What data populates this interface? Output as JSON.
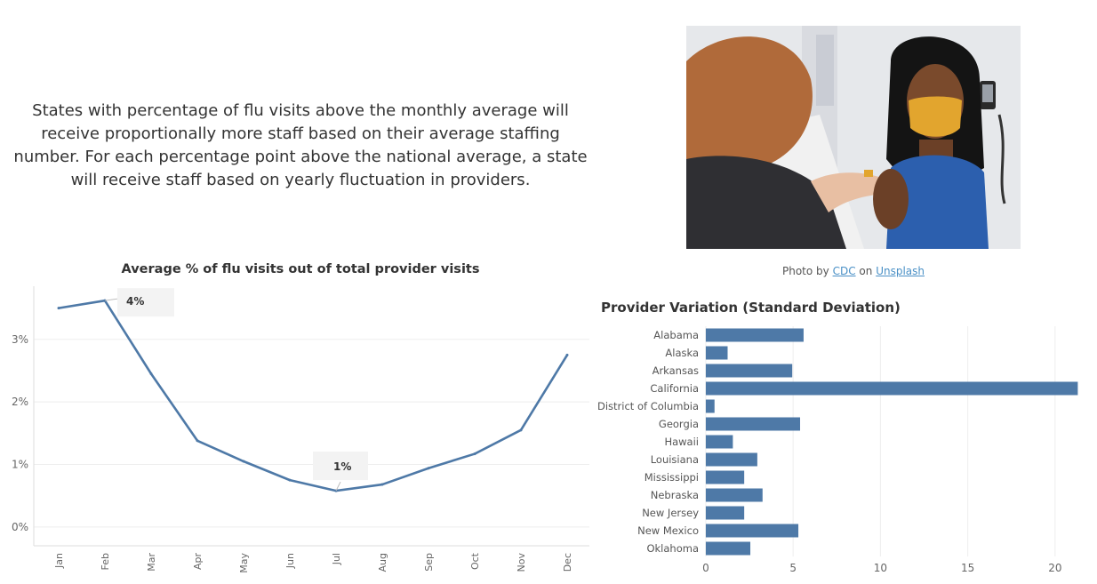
{
  "intro_text": "States with percentage of flu visits above the monthly average will receive proportionally more staff based on their average staffing number. For each percentage point above the national average, a state will receive staff based on yearly fluctuation in providers.",
  "photo_credit": {
    "prefix": "Photo by",
    "author": "CDC",
    "middle": "on",
    "site": "Unsplash"
  },
  "colors": {
    "series": "#4e79a7",
    "grid": "#eeeeee",
    "axis_text": "#666666",
    "label_bg": "#f3f3f3"
  },
  "chart_data": [
    {
      "type": "line",
      "title": "Average % of flu visits out of total provider visits",
      "x": [
        "Jan",
        "Feb",
        "Mar",
        "Apr",
        "May",
        "Jun",
        "Jul",
        "Aug",
        "Sep",
        "Oct",
        "Nov",
        "Dec"
      ],
      "values": [
        3.5,
        3.62,
        2.45,
        1.38,
        1.05,
        0.75,
        0.58,
        0.68,
        0.94,
        1.17,
        1.55,
        2.75
      ],
      "y_ticks": [
        0,
        1,
        2,
        3
      ],
      "y_tick_labels": [
        "0%",
        "1%",
        "2%",
        "3%"
      ],
      "ylim": [
        -0.3,
        3.85
      ],
      "grid": true,
      "annotations": [
        {
          "index": 1,
          "text": "4%"
        },
        {
          "index": 6,
          "text": "1%"
        }
      ]
    },
    {
      "type": "bar",
      "orientation": "horizontal",
      "title": "Provider Variation (Standard Deviation)",
      "categories": [
        "Alabama",
        "Alaska",
        "Arkansas",
        "California",
        "District of Columbia",
        "Georgia",
        "Hawaii",
        "Louisiana",
        "Mississippi",
        "Nebraska",
        "New Jersey",
        "New Mexico",
        "Oklahoma"
      ],
      "values": [
        5.6,
        1.25,
        4.95,
        21.3,
        0.5,
        5.4,
        1.55,
        2.95,
        2.2,
        3.25,
        2.2,
        5.3,
        2.55
      ],
      "x_ticks": [
        0,
        5,
        10,
        15,
        20
      ],
      "x_tick_labels": [
        "0",
        "5",
        "10",
        "15",
        "20"
      ],
      "xlim": [
        -0.2,
        22.4
      ],
      "grid": true
    }
  ]
}
